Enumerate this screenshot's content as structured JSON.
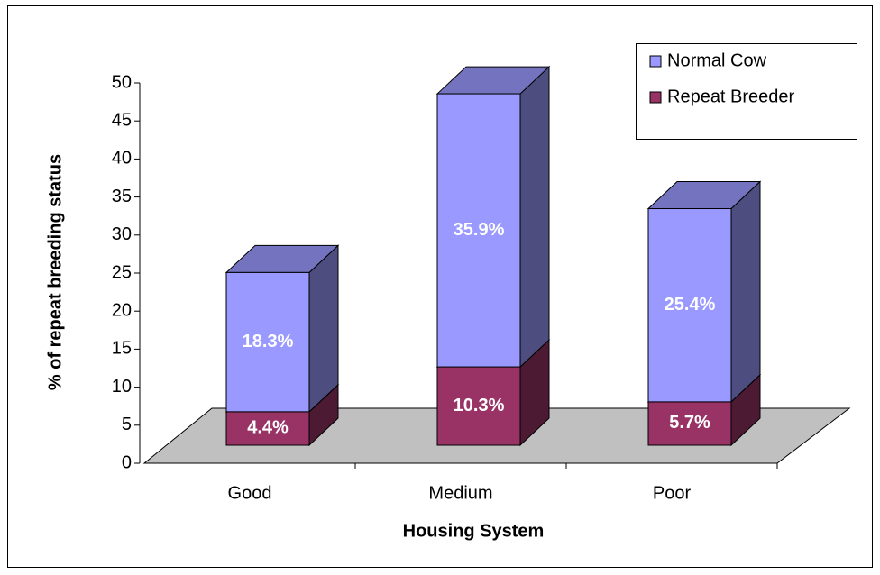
{
  "chart_data": {
    "type": "bar3d_stacked",
    "categories": [
      "Good",
      "Medium",
      "Poor"
    ],
    "series": [
      {
        "name": "Repeat Breeder",
        "color": "#993366",
        "values": [
          4.4,
          10.3,
          5.7
        ],
        "value_labels": [
          "4.4%",
          "10.3%",
          "5.7%"
        ]
      },
      {
        "name": "Normal Cow",
        "color": "#9999ff",
        "values": [
          18.3,
          35.9,
          25.4
        ],
        "value_labels": [
          "18.3%",
          "35.9%",
          "25.4%"
        ]
      }
    ],
    "xlabel": "Housing System",
    "ylabel": "% of repeat breeding status",
    "ylim": [
      0,
      50
    ],
    "yticks": [
      0,
      5,
      10,
      15,
      20,
      25,
      30,
      35,
      40,
      45,
      50
    ],
    "legend": "upper right"
  }
}
